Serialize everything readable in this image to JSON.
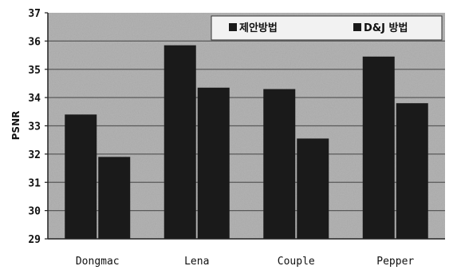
{
  "chart_data": {
    "type": "bar",
    "title": "",
    "xlabel": "",
    "ylabel": "PSNR",
    "ylim": [
      29,
      37
    ],
    "yticks": [
      29,
      30,
      31,
      32,
      33,
      34,
      35,
      36,
      37
    ],
    "grid": true,
    "legend_position": "top-right",
    "categories": [
      "Dongmac",
      "Lena",
      "Couple",
      "Pepper"
    ],
    "series": [
      {
        "name": "제안방법",
        "values": [
          33.4,
          35.85,
          34.3,
          35.45
        ]
      },
      {
        "name": "D&J 방법",
        "values": [
          31.9,
          34.35,
          32.55,
          33.8
        ]
      }
    ]
  },
  "colors": {
    "plot_background": "#b4b4b4",
    "gridline": "#5a5a5a",
    "bar": "#1a1a1a",
    "legend_background": "#f2f2f2",
    "legend_swatch": "#1a1a1a"
  }
}
